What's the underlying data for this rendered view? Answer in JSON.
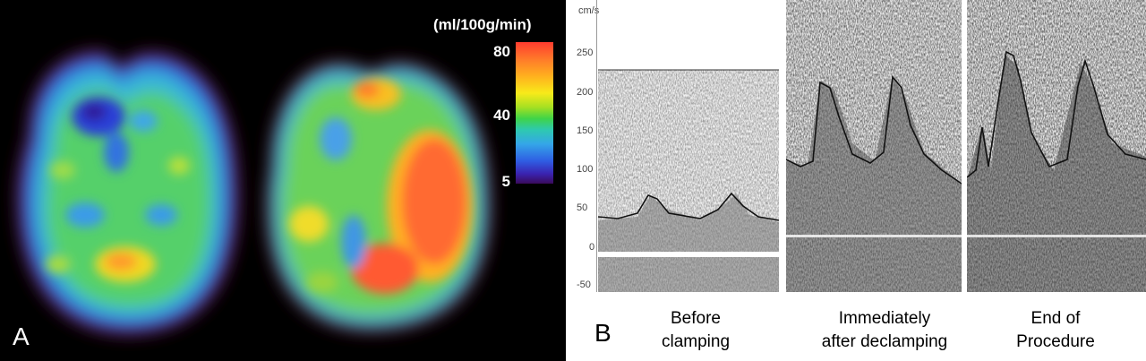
{
  "panel_a": {
    "label": "A",
    "scale": {
      "unit": "(ml/100g/min)",
      "ticks": [
        "80",
        "40",
        "5"
      ]
    }
  },
  "panel_b": {
    "label": "B",
    "y_axis": {
      "unit": "cm/s",
      "ticks": [
        "250",
        "200",
        "150",
        "100",
        "50",
        "0",
        "-50"
      ]
    },
    "captions": [
      [
        "Before",
        "clamping"
      ],
      [
        "Immediately",
        "after declamping"
      ],
      [
        "End of",
        "Procedure"
      ]
    ]
  }
}
